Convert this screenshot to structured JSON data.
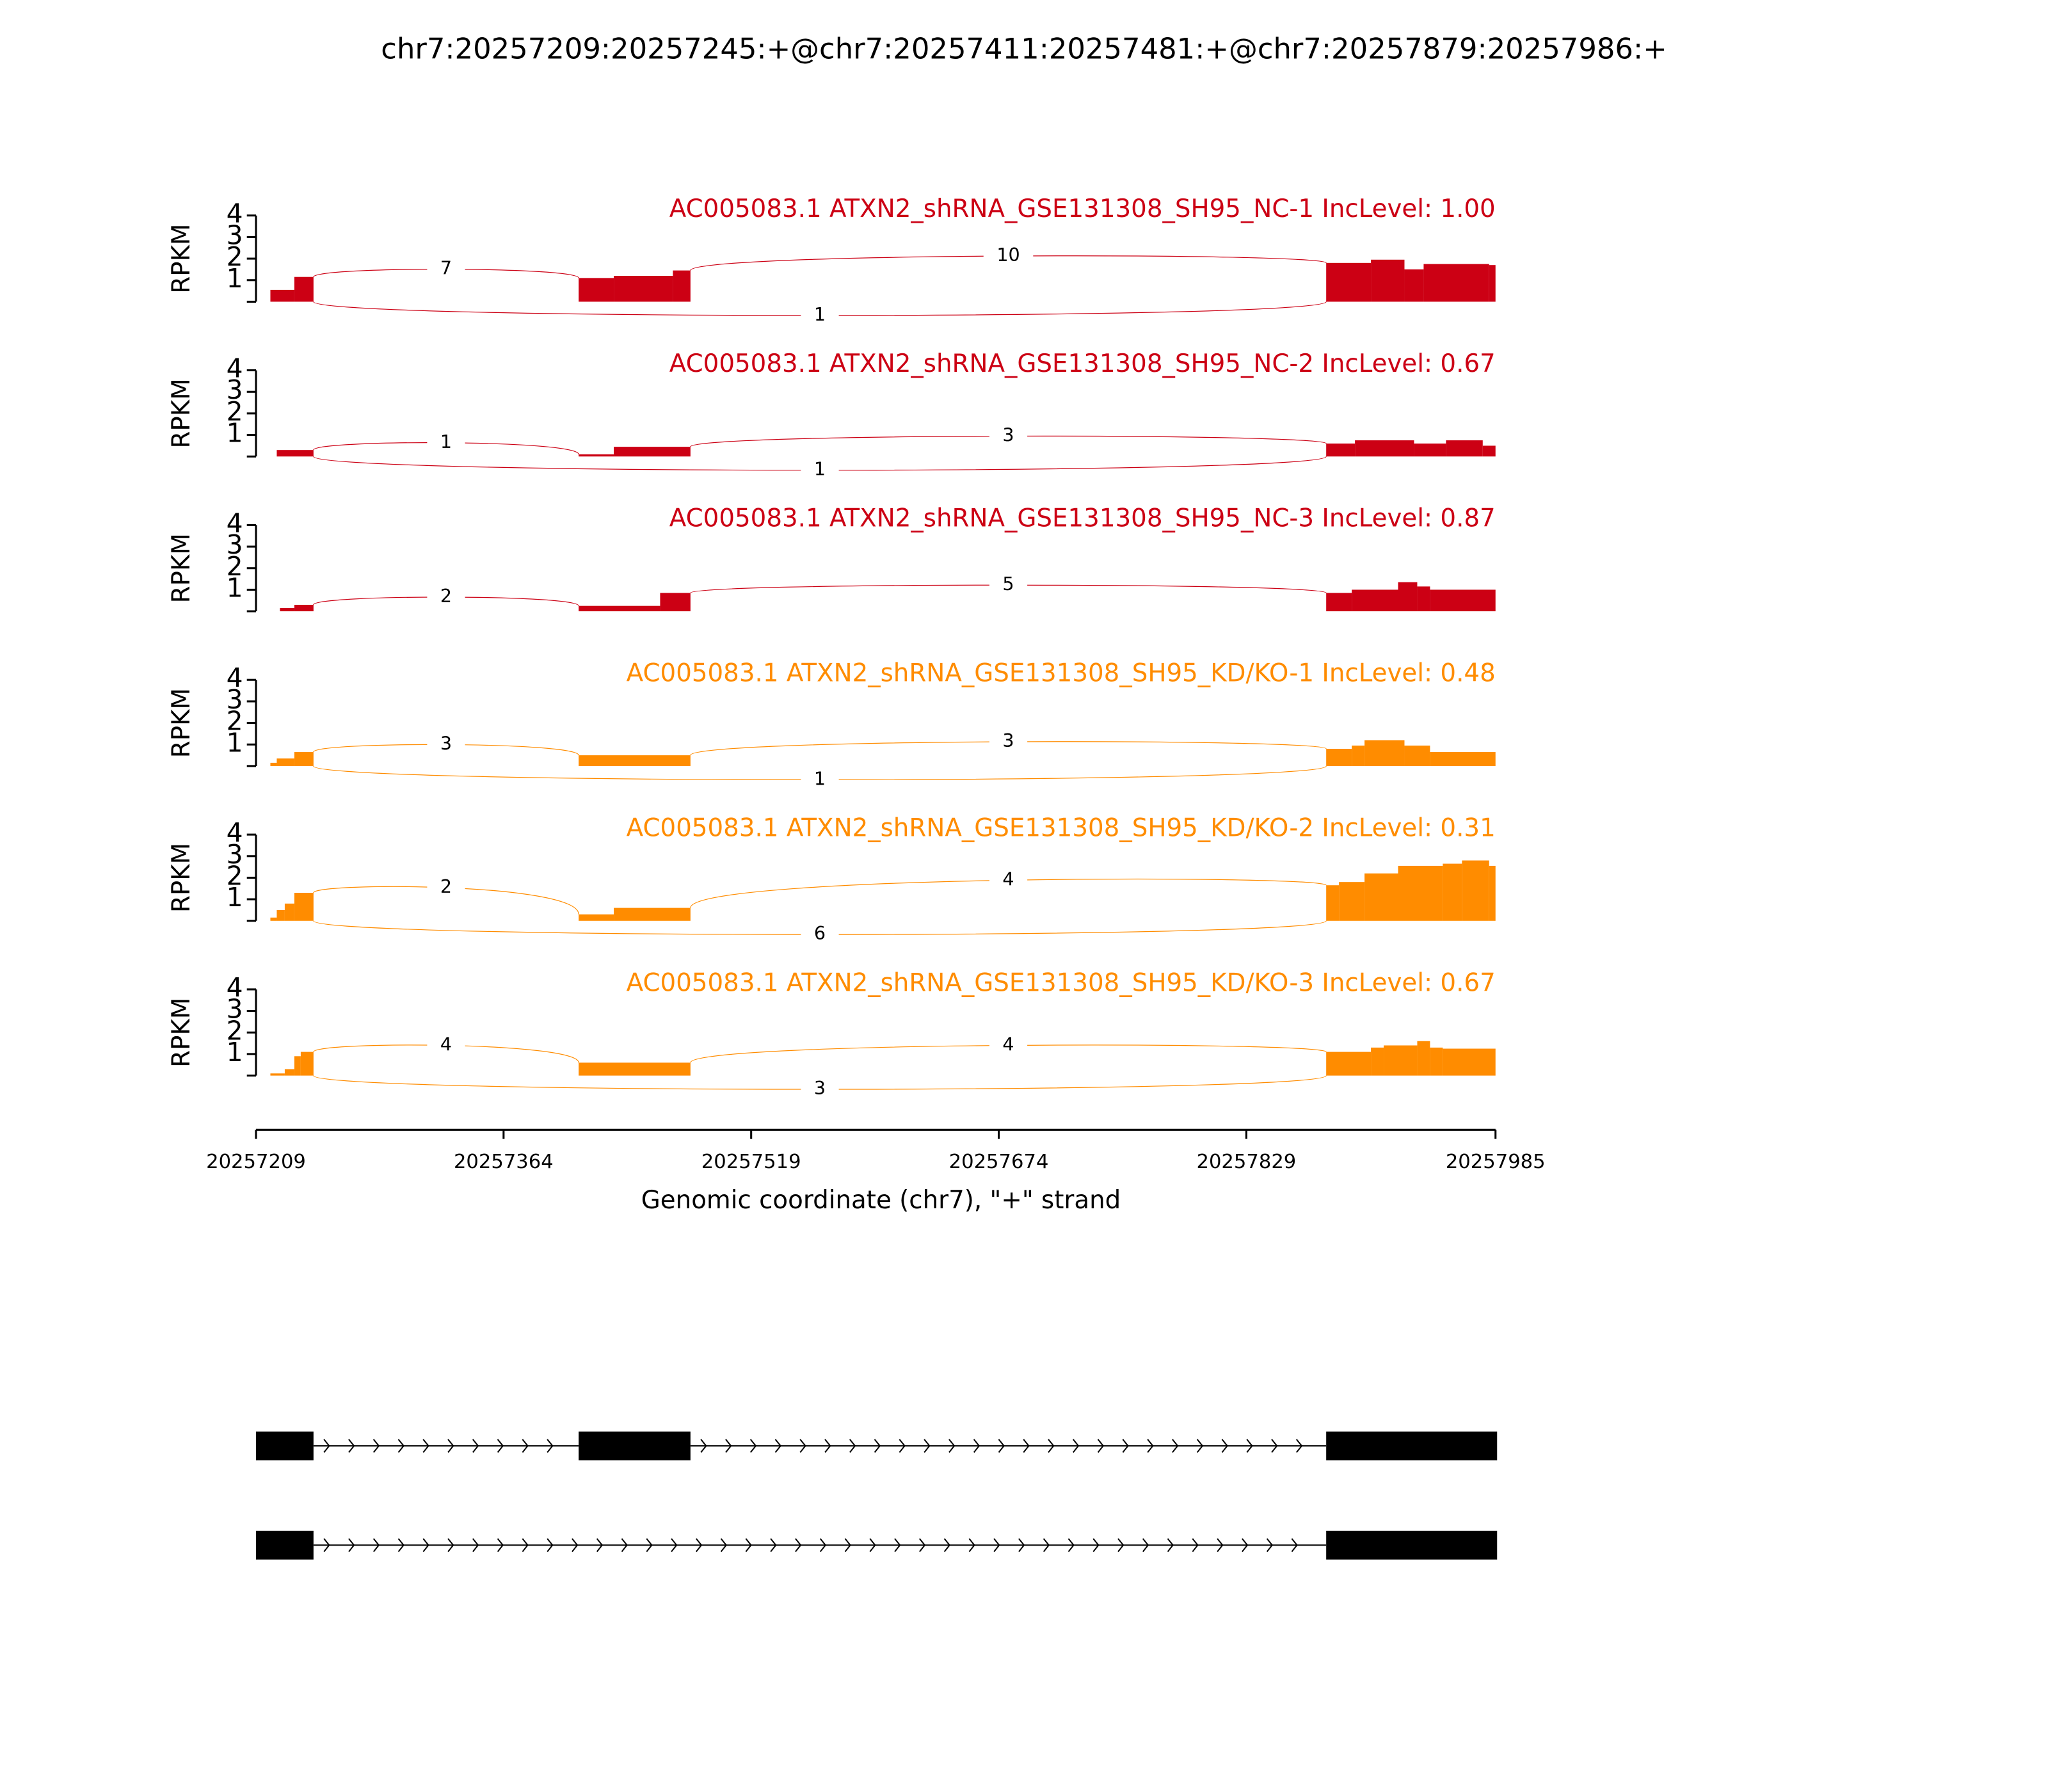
{
  "chart_data": {
    "type": "sashimi",
    "title": "chr7:20257209:20257245:+@chr7:20257411:20257481:+@chr7:20257879:20257986:+",
    "xlim": [
      20257209,
      20257985
    ],
    "xticks": [
      20257209,
      20257364,
      20257519,
      20257674,
      20257829,
      20257985
    ],
    "xlabel": "Genomic coordinate (chr7), \"+\" strand",
    "ylabel": "RPKM",
    "tracks": [
      {
        "title": "AC005083.1 ATXN2_shRNA_GSE131308_SH95_NC-1 IncLevel: 1.00",
        "color": "#cc0014",
        "ylim": [
          0,
          4
        ],
        "yticks": [
          1,
          2,
          3,
          4
        ],
        "x": [
          20257218,
          20257233,
          20257245,
          20257411,
          20257433,
          20257470,
          20257481,
          20257879,
          20257907,
          20257928,
          20257940,
          20257981,
          20257985
        ],
        "values": [
          0.55,
          1.15,
          0,
          1.1,
          1.2,
          1.45,
          0,
          1.8,
          1.95,
          1.5,
          1.75,
          1.7,
          0
        ],
        "junctions": [
          {
            "start": 20257245,
            "end": 20257411,
            "count": 7,
            "side": "above"
          },
          {
            "start": 20257481,
            "end": 20257879,
            "count": 10,
            "side": "above"
          },
          {
            "start": 20257245,
            "end": 20257879,
            "count": 1,
            "side": "below"
          }
        ]
      },
      {
        "title": "AC005083.1 ATXN2_shRNA_GSE131308_SH95_NC-2 IncLevel: 0.67",
        "color": "#cc0014",
        "ylim": [
          0,
          4
        ],
        "yticks": [
          1,
          2,
          3,
          4
        ],
        "x": [
          20257222,
          20257245,
          20257411,
          20257433,
          20257481,
          20257879,
          20257897,
          20257934,
          20257954,
          20257977,
          20257985
        ],
        "values": [
          0.3,
          0,
          0.1,
          0.45,
          0,
          0.6,
          0.75,
          0.6,
          0.75,
          0.5,
          0
        ],
        "junctions": [
          {
            "start": 20257245,
            "end": 20257411,
            "count": 1,
            "side": "above"
          },
          {
            "start": 20257481,
            "end": 20257879,
            "count": 3,
            "side": "above"
          },
          {
            "start": 20257245,
            "end": 20257879,
            "count": 1,
            "side": "below"
          }
        ]
      },
      {
        "title": "AC005083.1 ATXN2_shRNA_GSE131308_SH95_NC-3 IncLevel: 0.87",
        "color": "#cc0014",
        "ylim": [
          0,
          4
        ],
        "yticks": [
          1,
          2,
          3,
          4
        ],
        "x": [
          20257224,
          20257233,
          20257245,
          20257411,
          20257462,
          20257481,
          20257879,
          20257895,
          20257924,
          20257936,
          20257944,
          20257985
        ],
        "values": [
          0.15,
          0.3,
          0,
          0.25,
          0.85,
          0,
          0.85,
          1.0,
          1.35,
          1.15,
          1.0,
          0
        ],
        "junctions": [
          {
            "start": 20257245,
            "end": 20257411,
            "count": 2,
            "side": "above"
          },
          {
            "start": 20257481,
            "end": 20257879,
            "count": 5,
            "side": "above"
          }
        ]
      },
      {
        "title": "AC005083.1 ATXN2_shRNA_GSE131308_SH95_KD/KO-1 IncLevel: 0.48",
        "color": "#ff8c00",
        "ylim": [
          0,
          4
        ],
        "yticks": [
          1,
          2,
          3,
          4
        ],
        "x": [
          20257218,
          20257222,
          20257233,
          20257245,
          20257411,
          20257481,
          20257879,
          20257895,
          20257903,
          20257928,
          20257944,
          20257985
        ],
        "values": [
          0.15,
          0.35,
          0.65,
          0,
          0.5,
          0,
          0.8,
          0.95,
          1.2,
          0.95,
          0.65,
          0
        ],
        "junctions": [
          {
            "start": 20257245,
            "end": 20257411,
            "count": 3,
            "side": "above"
          },
          {
            "start": 20257481,
            "end": 20257879,
            "count": 3,
            "side": "above"
          },
          {
            "start": 20257245,
            "end": 20257879,
            "count": 1,
            "side": "below"
          }
        ]
      },
      {
        "title": "AC005083.1 ATXN2_shRNA_GSE131308_SH95_KD/KO-2 IncLevel: 0.31",
        "color": "#ff8c00",
        "ylim": [
          0,
          4
        ],
        "yticks": [
          1,
          2,
          3,
          4
        ],
        "x": [
          20257218,
          20257222,
          20257227,
          20257233,
          20257245,
          20257411,
          20257433,
          20257481,
          20257879,
          20257887,
          20257903,
          20257924,
          20257952,
          20257964,
          20257981,
          20257985
        ],
        "values": [
          0.15,
          0.5,
          0.8,
          1.3,
          0,
          0.3,
          0.6,
          0,
          1.65,
          1.8,
          2.2,
          2.55,
          2.65,
          2.8,
          2.55,
          0
        ],
        "junctions": [
          {
            "start": 20257245,
            "end": 20257411,
            "count": 2,
            "side": "above"
          },
          {
            "start": 20257481,
            "end": 20257879,
            "count": 4,
            "side": "above"
          },
          {
            "start": 20257245,
            "end": 20257879,
            "count": 6,
            "side": "below"
          }
        ]
      },
      {
        "title": "AC005083.1 ATXN2_shRNA_GSE131308_SH95_KD/KO-3 IncLevel: 0.67",
        "color": "#ff8c00",
        "ylim": [
          0,
          4
        ],
        "yticks": [
          1,
          2,
          3,
          4
        ],
        "x": [
          20257218,
          20257227,
          20257233,
          20257237,
          20257245,
          20257411,
          20257481,
          20257879,
          20257907,
          20257915,
          20257936,
          20257944,
          20257952,
          20257985
        ],
        "values": [
          0.1,
          0.3,
          0.9,
          1.1,
          0,
          0.6,
          0,
          1.1,
          1.3,
          1.4,
          1.6,
          1.3,
          1.25,
          0
        ],
        "junctions": [
          {
            "start": 20257245,
            "end": 20257411,
            "count": 4,
            "side": "above"
          },
          {
            "start": 20257481,
            "end": 20257879,
            "count": 4,
            "side": "above"
          },
          {
            "start": 20257245,
            "end": 20257879,
            "count": 3,
            "side": "below"
          }
        ]
      }
    ],
    "transcripts": [
      {
        "exons": [
          [
            20257209,
            20257245
          ],
          [
            20257411,
            20257481
          ],
          [
            20257879,
            20257986
          ]
        ]
      },
      {
        "exons": [
          [
            20257209,
            20257245
          ],
          [
            20257879,
            20257986
          ]
        ]
      }
    ]
  }
}
